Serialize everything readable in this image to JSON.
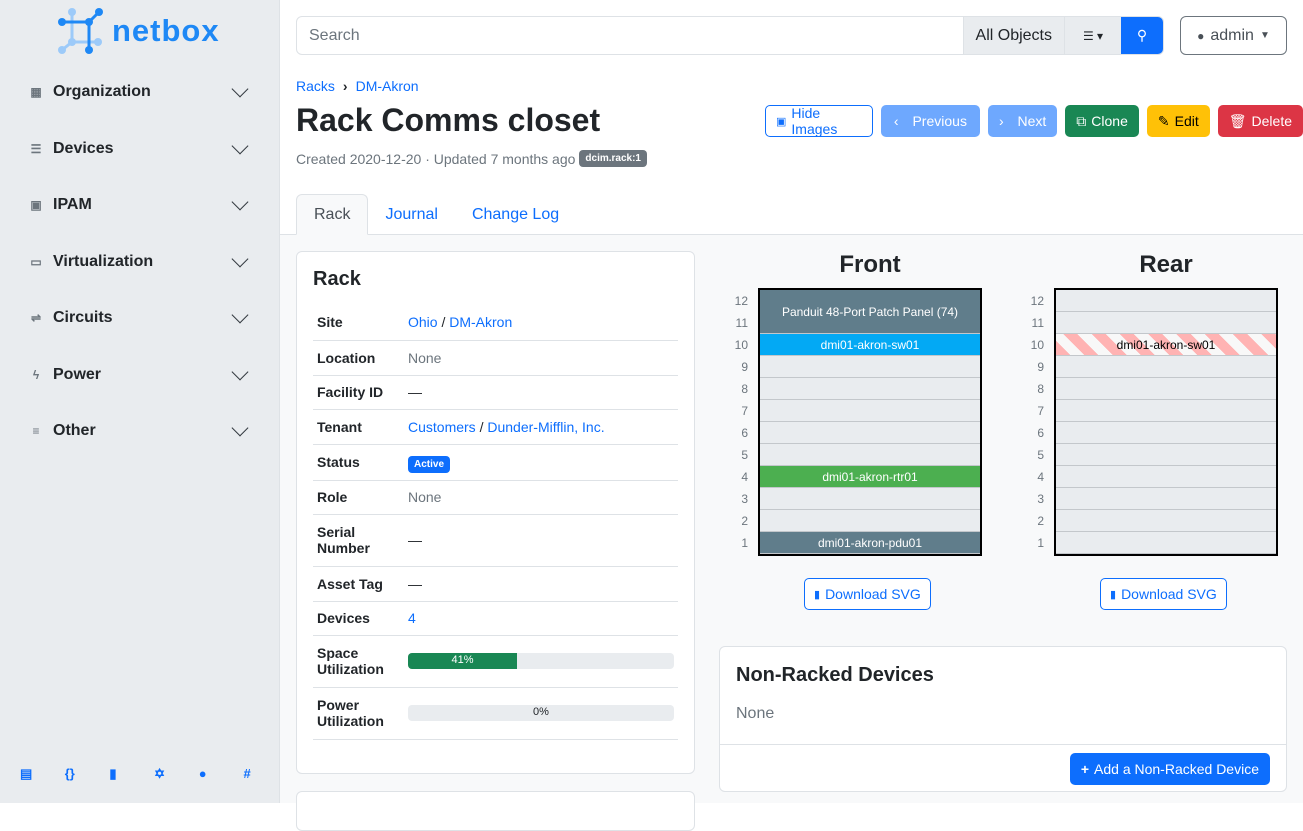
{
  "brand": "netbox",
  "sidebar": {
    "items": [
      {
        "label": "Organization",
        "icon": "building-icon"
      },
      {
        "label": "Devices",
        "icon": "server-icon"
      },
      {
        "label": "IPAM",
        "icon": "ip-icon"
      },
      {
        "label": "Virtualization",
        "icon": "monitor-icon"
      },
      {
        "label": "Circuits",
        "icon": "circuit-icon"
      },
      {
        "label": "Power",
        "icon": "bolt-icon"
      },
      {
        "label": "Other",
        "icon": "list-icon"
      }
    ],
    "footer": [
      "book-icon",
      "api-icon",
      "docs-icon",
      "graphql-icon",
      "github-icon",
      "slack-icon"
    ]
  },
  "search": {
    "placeholder": "Search",
    "scope": "All Objects"
  },
  "user": "admin",
  "breadcrumb": [
    "Racks",
    "DM-Akron"
  ],
  "title": "Rack Comms closet",
  "meta": {
    "text": "Created 2020-12-20 · Updated 7 months ago",
    "tag": "dcim.rack:1"
  },
  "actions": {
    "hide_images": "Hide Images",
    "previous": "Previous",
    "next": "Next",
    "clone": "Clone",
    "edit": "Edit",
    "delete": "Delete"
  },
  "tabs": [
    "Rack",
    "Journal",
    "Change Log"
  ],
  "rack_card": {
    "title": "Rack",
    "site": [
      "Ohio",
      "DM-Akron"
    ],
    "location": "None",
    "facility_id": "—",
    "tenant": [
      "Customers",
      "Dunder-Mifflin, Inc."
    ],
    "status": "Active",
    "role": "None",
    "serial": "—",
    "asset_tag": "—",
    "devices": "4",
    "space_util": 41,
    "space_label": "41%",
    "power_util": 0,
    "power_label": "0%",
    "labels": {
      "site": "Site",
      "location": "Location",
      "facility": "Facility ID",
      "tenant": "Tenant",
      "status": "Status",
      "role": "Role",
      "serial": "Serial Number",
      "asset": "Asset Tag",
      "devices": "Devices",
      "space": "Space Utilization",
      "power": "Power Utilization"
    }
  },
  "elevation": {
    "front_title": "Front",
    "rear_title": "Rear",
    "units": [
      12,
      11,
      10,
      9,
      8,
      7,
      6,
      5,
      4,
      3,
      2,
      1
    ],
    "front": [
      {
        "name": "Panduit 48-Port Patch Panel (74)",
        "top": 12,
        "height": 2,
        "color": "#607d8b"
      },
      {
        "name": "dmi01-akron-sw01",
        "top": 10,
        "height": 1,
        "color": "#03a9f4"
      },
      {
        "name": "dmi01-akron-rtr01",
        "top": 4,
        "height": 1,
        "color": "#4caf50"
      },
      {
        "name": "dmi01-akron-pdu01",
        "top": 1,
        "height": 1,
        "color": "#607d8b"
      }
    ],
    "rear": [
      {
        "name": "dmi01-akron-sw01",
        "top": 10,
        "height": 1,
        "color": "striped"
      }
    ],
    "download": "Download SVG"
  },
  "nonracked": {
    "title": "Non-Racked Devices",
    "value": "None",
    "add": "Add a Non-Racked Device"
  }
}
